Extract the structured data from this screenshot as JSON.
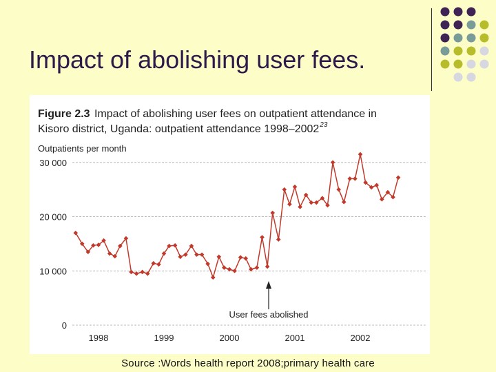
{
  "slide": {
    "title": "Impact of abolishing user fees.",
    "source": "Source :Words health report 2008;primary health care"
  },
  "colors": {
    "background": "#fdfdc8",
    "line": "#c0392b",
    "dot_purple": "#3f2354",
    "dot_teal": "#7a9c98",
    "dot_olive": "#b7bd2a",
    "dot_grey": "#d7d7e2"
  },
  "decoration": {
    "dot_grid": [
      [
        "purple",
        "purple",
        "purple",
        "none"
      ],
      [
        "purple",
        "purple",
        "teal",
        "olive"
      ],
      [
        "purple",
        "teal",
        "teal",
        "olive"
      ],
      [
        "teal",
        "olive",
        "olive",
        "grey"
      ],
      [
        "olive",
        "olive",
        "grey",
        "grey"
      ],
      [
        "none",
        "grey",
        "grey",
        "none"
      ]
    ]
  },
  "chart_data": {
    "type": "line",
    "figure_label": "Figure 2.3",
    "title_line1": "Impact of abolishing user fees on outpatient attendance in",
    "title_line2": "Kisoro district, Uganda: outpatient attendance 1998–2002",
    "title_superscript": "23",
    "ylabel": "Outpatients per month",
    "ylim": [
      0,
      32000
    ],
    "yticks": [
      0,
      10000,
      20000,
      30000
    ],
    "ytick_labels": [
      "0",
      "10 000",
      "20 000",
      "30 000"
    ],
    "xlim": [
      1997.6,
      2003.0
    ],
    "xticks": [
      1998,
      1999,
      2000,
      2001,
      2002
    ],
    "xtick_labels": [
      "1998",
      "1999",
      "2000",
      "2001",
      "2002"
    ],
    "grid": "horizontal-dashed",
    "series": [
      {
        "x": [
          1997.65,
          1997.75,
          1997.84,
          1997.92,
          1998.0,
          1998.08,
          1998.17,
          1998.25,
          1998.33,
          1998.42,
          1998.5,
          1998.58,
          1998.67,
          1998.75,
          1998.84,
          1998.92,
          1999.0,
          1999.08,
          1999.17,
          1999.25,
          1999.33,
          1999.42,
          1999.5,
          1999.58,
          1999.67,
          1999.75,
          1999.84,
          1999.92,
          2000.0,
          2000.08,
          2000.17,
          2000.25,
          2000.33,
          2000.42,
          2000.5,
          2000.58,
          2000.66,
          2000.75,
          2000.84,
          2000.92,
          2001.0,
          2001.08,
          2001.17,
          2001.25,
          2001.33,
          2001.42,
          2001.5,
          2001.58,
          2001.67,
          2001.75,
          2001.84,
          2001.92,
          2002.0,
          2002.08,
          2002.17,
          2002.25,
          2002.33,
          2002.42,
          2002.5,
          2002.58
        ],
        "y": [
          17000,
          15000,
          13500,
          14700,
          14800,
          15600,
          13200,
          12700,
          14600,
          16000,
          9800,
          9500,
          9800,
          9500,
          11400,
          11200,
          13200,
          14600,
          14700,
          12600,
          13000,
          14600,
          13000,
          13000,
          11300,
          8800,
          12600,
          10600,
          10300,
          10000,
          12500,
          12300,
          10300,
          10600,
          16200,
          10800,
          20700,
          15800,
          25000,
          22300,
          25500,
          21800,
          24000,
          22600,
          22600,
          23400,
          22100,
          30000,
          25000,
          22700,
          27000,
          27000,
          31500,
          26300,
          25400,
          25800,
          23200,
          24500,
          23600,
          27200
        ]
      }
    ],
    "annotations": [
      {
        "text": "User fees abolished",
        "x": 2000.6
      }
    ]
  }
}
